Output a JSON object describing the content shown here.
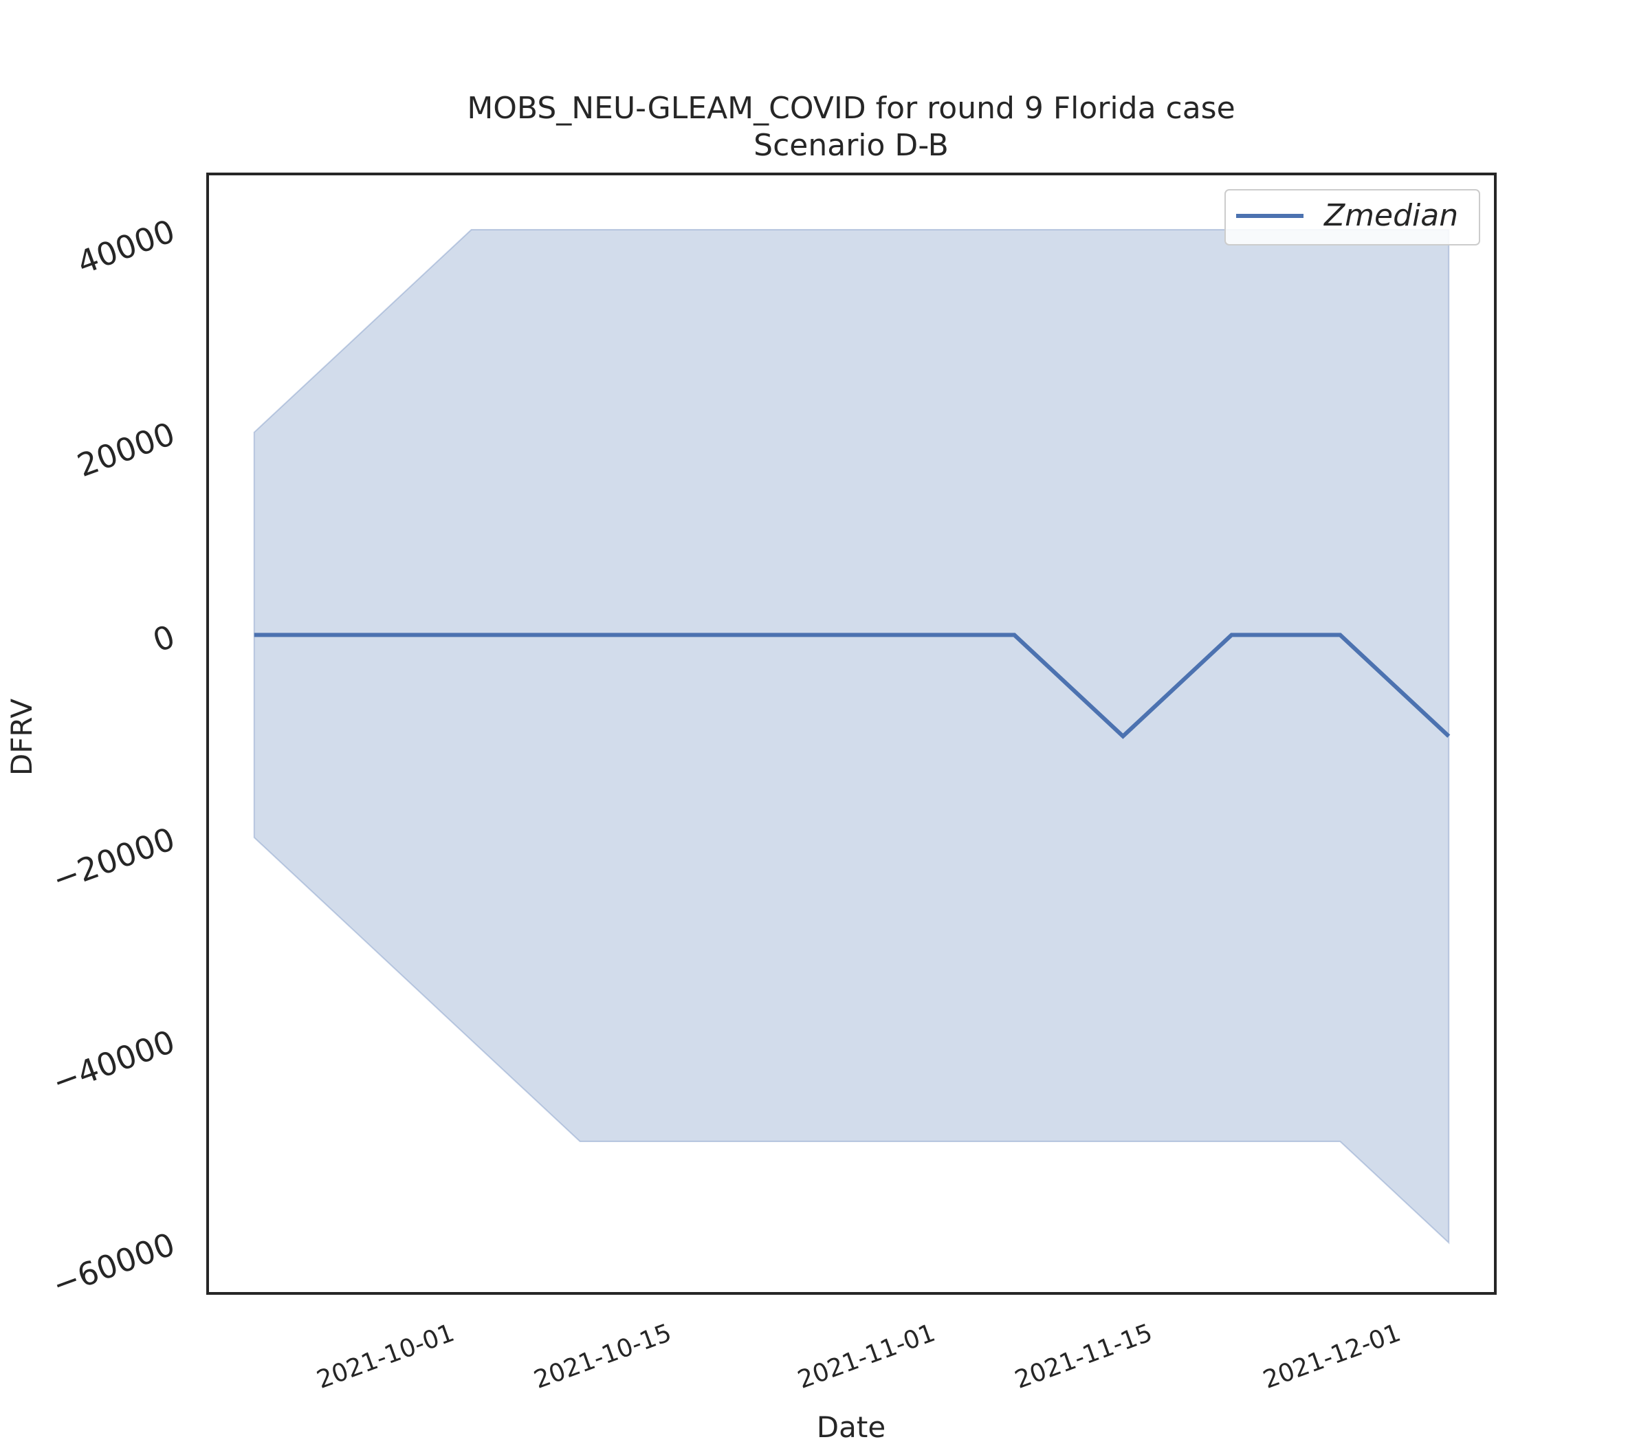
{
  "chart_data": {
    "type": "line",
    "title": "MOBS_NEU-GLEAM_COVID for round 9 Florida case",
    "subtitle": "Scenario D-B",
    "xlabel": "Date",
    "ylabel": "DFRV",
    "x": [
      "2021-09-18",
      "2021-09-25",
      "2021-10-02",
      "2021-10-09",
      "2021-10-16",
      "2021-10-23",
      "2021-10-30",
      "2021-11-06",
      "2021-11-13",
      "2021-11-20",
      "2021-11-27",
      "2021-12-04"
    ],
    "series": [
      {
        "name": "Zmedian",
        "values": [
          0,
          0,
          0,
          0,
          0,
          0,
          0,
          0,
          -10000,
          0,
          0,
          -10000
        ],
        "color": "#4c72b0"
      }
    ],
    "band": {
      "upper": [
        20000,
        30000,
        40000,
        40000,
        40000,
        40000,
        40000,
        40000,
        40000,
        40000,
        40000,
        40000
      ],
      "lower": [
        -20000,
        -30000,
        -40000,
        -50000,
        -50000,
        -50000,
        -50000,
        -50000,
        -50000,
        -50000,
        -50000,
        -60000
      ],
      "color": "#4c72b0",
      "opacity": 0.25
    },
    "xticks": [
      "2021-10-01",
      "2021-10-15",
      "2021-11-01",
      "2021-11-15",
      "2021-12-01"
    ],
    "yticks": [
      40000,
      20000,
      0,
      -20000,
      -40000,
      -60000
    ],
    "ytick_labels": [
      "40000",
      "20000",
      "0",
      "−20000",
      "−40000",
      "−60000"
    ],
    "ylim": [
      -65000,
      45500
    ],
    "xlim": [
      "2021-09-15",
      "2021-12-07"
    ],
    "legend_position": "top-right",
    "grid": false
  }
}
